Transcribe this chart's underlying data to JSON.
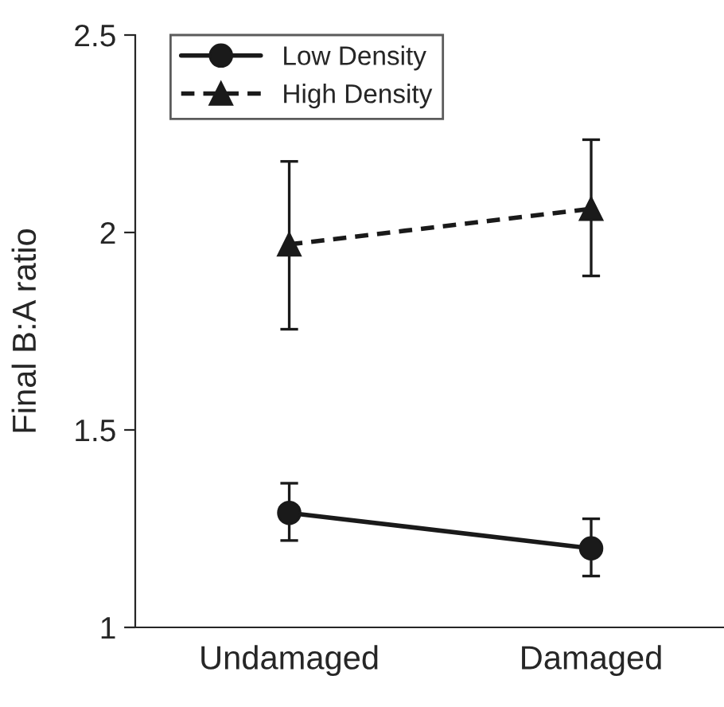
{
  "chart_data": {
    "type": "line",
    "ylabel": "Final B:A ratio",
    "categories": [
      "Undamaged",
      "Damaged"
    ],
    "series": [
      {
        "name": "Low Density",
        "color": "#1a1a1a",
        "marker": "circle",
        "line_style": "solid",
        "values": [
          1.29,
          1.2
        ],
        "errors": [
          [
            1.22,
            1.365
          ],
          [
            1.13,
            1.275
          ]
        ]
      },
      {
        "name": "High Density",
        "color": "#1a1a1a",
        "marker": "triangle",
        "line_style": "dashed",
        "values": [
          1.97,
          2.06
        ],
        "errors": [
          [
            1.755,
            2.18
          ],
          [
            1.89,
            2.235
          ]
        ]
      }
    ],
    "ylim": [
      1,
      2.5
    ],
    "yticks": [
      1,
      1.5,
      2,
      2.5
    ],
    "grid": false,
    "legend": "top left"
  }
}
